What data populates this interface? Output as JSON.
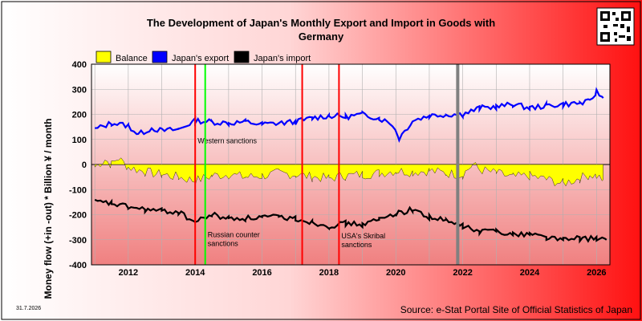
{
  "page": {
    "date_stamp": "31.7.2026",
    "source": "Source: e-Stat Portal Site of Official Statistics of Japan",
    "qr_icon": "qr-code-icon"
  },
  "chart_data": {
    "type": "line",
    "title_line1": "The Development of Japan's Monthly Export and Import in Goods with",
    "title_line2": "Germany",
    "ylabel": "Money flow (+in -out) * Billion ¥ / month",
    "xlabel": "",
    "xlim": [
      2010.9,
      2026.4
    ],
    "ylim": [
      -400,
      400
    ],
    "x_ticks": [
      2012,
      2014,
      2016,
      2018,
      2020,
      2022,
      2024,
      2026
    ],
    "y_ticks": [
      400,
      300,
      200,
      100,
      0,
      -100,
      -200,
      -300,
      -400
    ],
    "grid": true,
    "legend_position": "top",
    "colors": {
      "balance": "#ffff00",
      "export": "#0000ff",
      "import": "#000000",
      "event_red": "#ff0000",
      "event_green": "#00ff00",
      "event_gray": "#808080"
    },
    "series": [
      {
        "name": "Balance",
        "key": "balance",
        "type": "area",
        "values": [
          [
            2011.0,
            -10
          ],
          [
            2011.3,
            20
          ],
          [
            2011.5,
            0
          ],
          [
            2011.7,
            25
          ],
          [
            2012.0,
            -10
          ],
          [
            2012.5,
            -30
          ],
          [
            2013.0,
            -40
          ],
          [
            2013.5,
            -50
          ],
          [
            2014.0,
            -65
          ],
          [
            2014.5,
            -45
          ],
          [
            2015.0,
            -40
          ],
          [
            2015.5,
            -50
          ],
          [
            2016.0,
            -45
          ],
          [
            2016.5,
            -35
          ],
          [
            2017.0,
            -40
          ],
          [
            2017.5,
            -50
          ],
          [
            2018.0,
            -55
          ],
          [
            2018.5,
            -45
          ],
          [
            2019.0,
            -40
          ],
          [
            2019.5,
            -35
          ],
          [
            2020.0,
            -25
          ],
          [
            2020.5,
            -30
          ],
          [
            2021.0,
            -25
          ],
          [
            2021.5,
            -35
          ],
          [
            2022.0,
            -40
          ],
          [
            2022.3,
            0
          ],
          [
            2022.5,
            -20
          ],
          [
            2023.0,
            -35
          ],
          [
            2023.5,
            -50
          ],
          [
            2024.0,
            -45
          ],
          [
            2024.5,
            -60
          ],
          [
            2025.0,
            -75
          ],
          [
            2025.5,
            -55
          ],
          [
            2025.8,
            -40
          ],
          [
            2026.0,
            -45
          ],
          [
            2026.2,
            -60
          ]
        ]
      },
      {
        "name": "Japan's export",
        "key": "export",
        "type": "line",
        "values": [
          [
            2011.0,
            140
          ],
          [
            2011.5,
            165
          ],
          [
            2012.0,
            155
          ],
          [
            2012.3,
            120
          ],
          [
            2012.7,
            145
          ],
          [
            2013.0,
            135
          ],
          [
            2013.5,
            140
          ],
          [
            2014.0,
            175
          ],
          [
            2014.5,
            170
          ],
          [
            2015.0,
            165
          ],
          [
            2015.5,
            170
          ],
          [
            2016.0,
            160
          ],
          [
            2016.5,
            165
          ],
          [
            2017.0,
            170
          ],
          [
            2017.5,
            185
          ],
          [
            2018.0,
            195
          ],
          [
            2018.5,
            190
          ],
          [
            2019.0,
            200
          ],
          [
            2019.5,
            185
          ],
          [
            2019.9,
            160
          ],
          [
            2020.1,
            105
          ],
          [
            2020.5,
            175
          ],
          [
            2021.0,
            195
          ],
          [
            2021.5,
            200
          ],
          [
            2022.0,
            200
          ],
          [
            2022.5,
            225
          ],
          [
            2023.0,
            230
          ],
          [
            2023.5,
            240
          ],
          [
            2024.0,
            225
          ],
          [
            2024.5,
            235
          ],
          [
            2025.0,
            240
          ],
          [
            2025.5,
            245
          ],
          [
            2025.8,
            250
          ],
          [
            2026.0,
            290
          ],
          [
            2026.2,
            265
          ]
        ]
      },
      {
        "name": "Japan's import",
        "key": "import",
        "type": "line",
        "values": [
          [
            2011.0,
            -150
          ],
          [
            2011.5,
            -155
          ],
          [
            2012.0,
            -170
          ],
          [
            2012.5,
            -180
          ],
          [
            2013.0,
            -185
          ],
          [
            2013.5,
            -190
          ],
          [
            2014.0,
            -230
          ],
          [
            2014.5,
            -200
          ],
          [
            2015.0,
            -215
          ],
          [
            2015.5,
            -215
          ],
          [
            2016.0,
            -210
          ],
          [
            2016.5,
            -210
          ],
          [
            2017.0,
            -215
          ],
          [
            2017.5,
            -230
          ],
          [
            2018.0,
            -245
          ],
          [
            2018.5,
            -235
          ],
          [
            2019.0,
            -240
          ],
          [
            2019.5,
            -220
          ],
          [
            2020.0,
            -195
          ],
          [
            2020.5,
            -180
          ],
          [
            2021.0,
            -210
          ],
          [
            2021.5,
            -225
          ],
          [
            2022.0,
            -245
          ],
          [
            2022.5,
            -270
          ],
          [
            2023.0,
            -260
          ],
          [
            2023.5,
            -280
          ],
          [
            2024.0,
            -275
          ],
          [
            2024.5,
            -290
          ],
          [
            2025.0,
            -300
          ],
          [
            2025.5,
            -295
          ],
          [
            2026.0,
            -295
          ],
          [
            2026.3,
            -300
          ]
        ]
      }
    ],
    "events": [
      {
        "x": 2014.0,
        "color": "red",
        "label": "Western sanctions",
        "label_y": 85
      },
      {
        "x": 2014.3,
        "color": "green",
        "label_lines": [
          "Russian counter",
          "sanctions"
        ],
        "label_y": -290
      },
      {
        "x": 2017.2,
        "color": "red",
        "label": "",
        "label_y": 0
      },
      {
        "x": 2018.3,
        "color": "red",
        "label_lines": [
          "USA's Skribal",
          "sanctions"
        ],
        "label_y": -295
      },
      {
        "x": 2021.85,
        "color": "gray",
        "label": "",
        "label_y": 0
      }
    ]
  }
}
